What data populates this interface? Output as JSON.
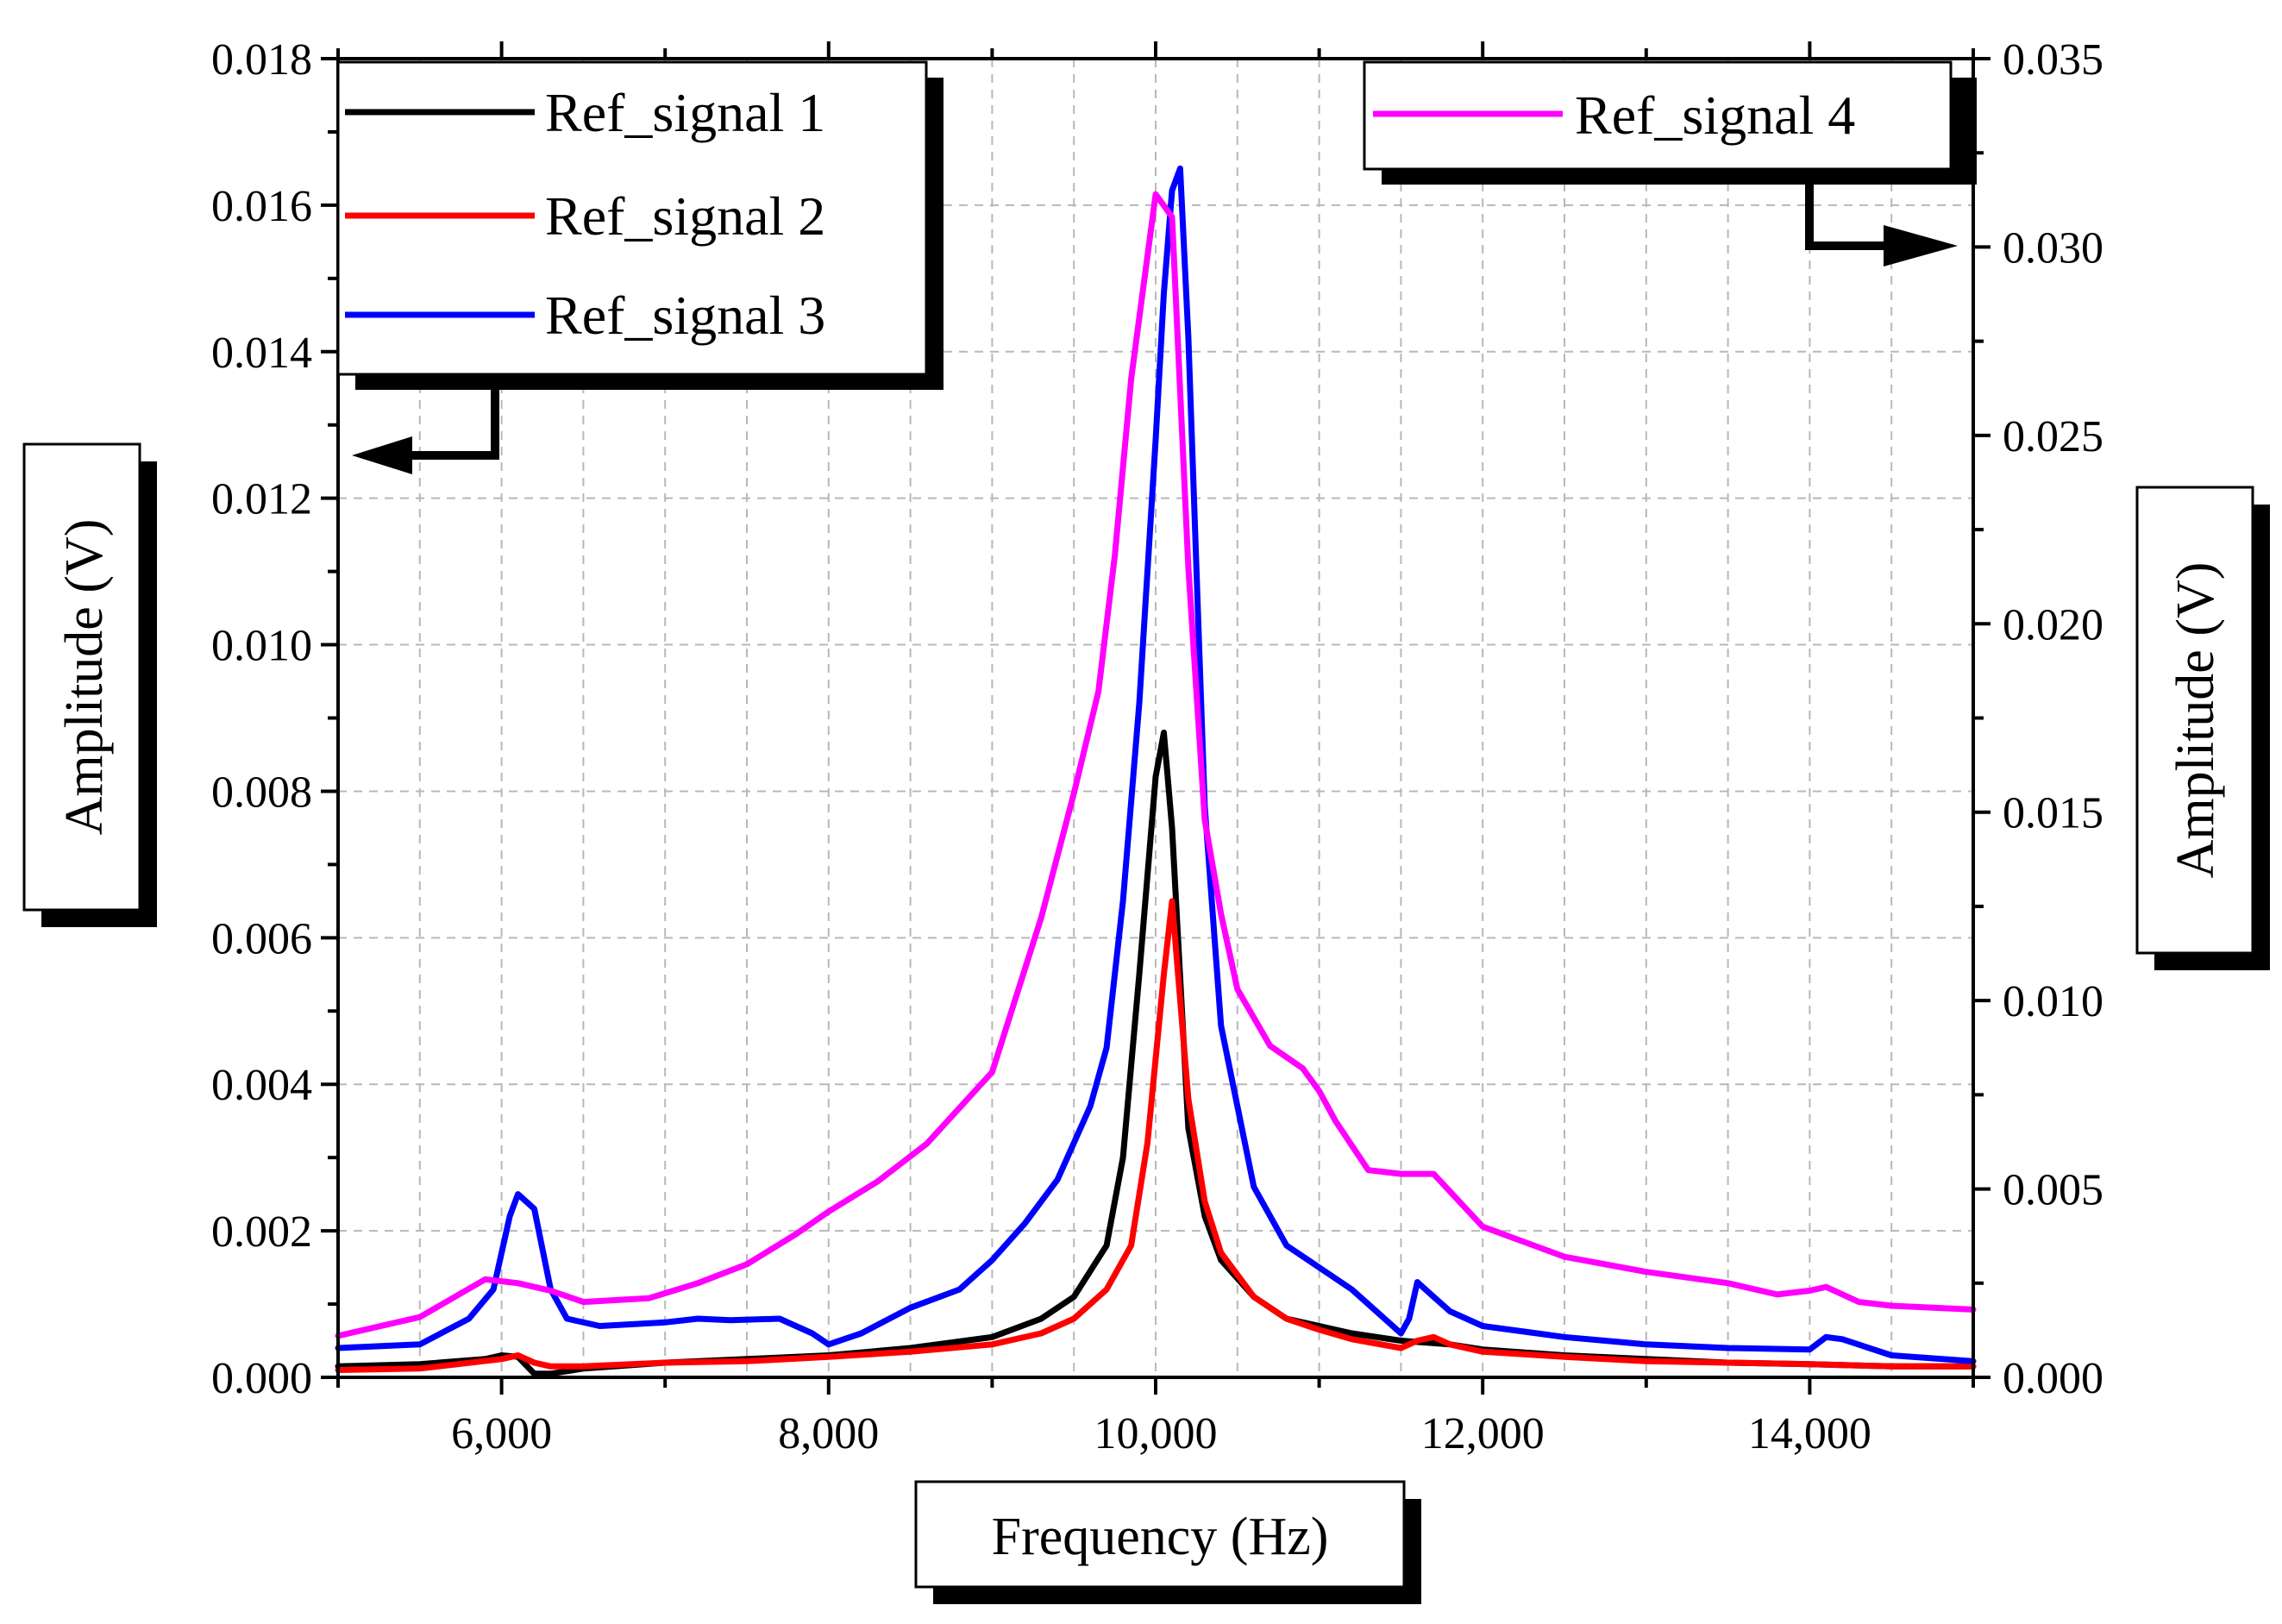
{
  "chart_data": {
    "type": "line",
    "xlabel": "Frequency (Hz)",
    "ylabel_left": "Amplitude (V)",
    "ylabel_right": "Amplitude (V)",
    "xlim": [
      5000,
      15000
    ],
    "ylim_left": [
      0,
      0.018
    ],
    "ylim_right": [
      0,
      0.035
    ],
    "x_ticks": [
      6000,
      8000,
      10000,
      12000,
      14000
    ],
    "x_tick_labels": [
      "6,000",
      "8,000",
      "10,000",
      "12,000",
      "14,000"
    ],
    "y_left_ticks": [
      0,
      0.002,
      0.004,
      0.006,
      0.008,
      0.01,
      0.012,
      0.014,
      0.016,
      0.018
    ],
    "y_left_tick_labels": [
      "0.000",
      "0.002",
      "0.004",
      "0.006",
      "0.008",
      "0.010",
      "0.012",
      "0.014",
      "0.016",
      "0.018"
    ],
    "y_right_ticks": [
      0,
      0.005,
      0.01,
      0.015,
      0.02,
      0.025,
      0.03,
      0.035
    ],
    "y_right_tick_labels": [
      "0.000",
      "0.005",
      "0.010",
      "0.015",
      "0.020",
      "0.025",
      "0.030",
      "0.035"
    ],
    "grid": true,
    "legend_left_position": "top-left",
    "legend_right_position": "top-right",
    "series": [
      {
        "name": "Ref_signal 1",
        "axis": "left",
        "color": "#000000",
        "x": [
          5000,
          5500,
          5900,
          6000,
          6100,
          6200,
          6300,
          6500,
          7000,
          7500,
          8000,
          8500,
          9000,
          9300,
          9500,
          9700,
          9800,
          9900,
          10000,
          10050,
          10100,
          10200,
          10300,
          10400,
          10600,
          10800,
          11000,
          11200,
          11500,
          11800,
          12000,
          12500,
          13000,
          13500,
          14000,
          14500,
          15000
        ],
        "y": [
          0.00015,
          0.00018,
          0.00025,
          0.0003,
          0.00028,
          5e-05,
          5e-05,
          0.00012,
          0.0002,
          0.00025,
          0.0003,
          0.0004,
          0.00055,
          0.0008,
          0.0011,
          0.0018,
          0.003,
          0.0055,
          0.0082,
          0.0088,
          0.0075,
          0.0034,
          0.0022,
          0.0016,
          0.0011,
          0.0008,
          0.0007,
          0.0006,
          0.0005,
          0.00045,
          0.00038,
          0.0003,
          0.00025,
          0.0002,
          0.00018,
          0.00015,
          0.00015
        ]
      },
      {
        "name": "Ref_signal 2",
        "axis": "left",
        "color": "#ff0000",
        "x": [
          5000,
          5500,
          6000,
          6100,
          6200,
          6300,
          6500,
          7000,
          7500,
          8000,
          8500,
          9000,
          9300,
          9500,
          9700,
          9850,
          9950,
          10050,
          10100,
          10200,
          10300,
          10400,
          10600,
          10800,
          11000,
          11200,
          11500,
          11600,
          11700,
          11800,
          12000,
          12500,
          13000,
          13500,
          14000,
          14500,
          15000
        ],
        "y": [
          0.0001,
          0.00012,
          0.00025,
          0.0003,
          0.0002,
          0.00015,
          0.00015,
          0.0002,
          0.00022,
          0.00028,
          0.00035,
          0.00045,
          0.0006,
          0.0008,
          0.0012,
          0.0018,
          0.0032,
          0.0055,
          0.0065,
          0.0038,
          0.0024,
          0.0017,
          0.0011,
          0.0008,
          0.00065,
          0.00052,
          0.0004,
          0.0005,
          0.00055,
          0.00045,
          0.00035,
          0.00028,
          0.00022,
          0.0002,
          0.00018,
          0.00015,
          0.00015
        ]
      },
      {
        "name": "Ref_signal 3",
        "axis": "left",
        "color": "#0000ff",
        "x": [
          5000,
          5500,
          5800,
          5950,
          6050,
          6100,
          6200,
          6300,
          6400,
          6600,
          7000,
          7200,
          7400,
          7700,
          7900,
          8000,
          8200,
          8500,
          8800,
          9000,
          9200,
          9400,
          9600,
          9700,
          9800,
          9900,
          10000,
          10050,
          10100,
          10150,
          10200,
          10300,
          10400,
          10600,
          10800,
          11000,
          11200,
          11500,
          11550,
          11600,
          11700,
          11800,
          12000,
          12500,
          13000,
          13500,
          14000,
          14100,
          14200,
          14500,
          15000
        ],
        "y": [
          0.0004,
          0.00045,
          0.0008,
          0.0012,
          0.0022,
          0.0025,
          0.0023,
          0.0012,
          0.0008,
          0.0007,
          0.00075,
          0.0008,
          0.00078,
          0.0008,
          0.0006,
          0.00045,
          0.0006,
          0.00095,
          0.0012,
          0.0016,
          0.0021,
          0.0027,
          0.0037,
          0.0045,
          0.0065,
          0.0092,
          0.0128,
          0.0148,
          0.0162,
          0.0165,
          0.0142,
          0.0078,
          0.0048,
          0.0026,
          0.0018,
          0.0015,
          0.0012,
          0.0006,
          0.0008,
          0.0013,
          0.0011,
          0.0009,
          0.0007,
          0.00055,
          0.00045,
          0.0004,
          0.00038,
          0.00055,
          0.00052,
          0.0003,
          0.00022
        ]
      },
      {
        "name": "Ref_signal 4",
        "axis": "right",
        "color": "#ff00ff",
        "x": [
          5000,
          5500,
          5900,
          6100,
          6300,
          6500,
          6900,
          7200,
          7500,
          7800,
          8000,
          8300,
          8600,
          9000,
          9300,
          9500,
          9650,
          9750,
          9850,
          10000,
          10100,
          10200,
          10300,
          10400,
          10500,
          10700,
          10900,
          11000,
          11100,
          11300,
          11500,
          11700,
          12000,
          12500,
          13000,
          13500,
          13800,
          14000,
          14100,
          14300,
          14500,
          15000
        ],
        "y": [
          0.0011,
          0.0016,
          0.0026,
          0.0025,
          0.0023,
          0.002,
          0.0021,
          0.0025,
          0.003,
          0.0038,
          0.0044,
          0.0052,
          0.0062,
          0.0081,
          0.0122,
          0.0155,
          0.0182,
          0.0218,
          0.0265,
          0.0314,
          0.0308,
          0.0215,
          0.0148,
          0.0123,
          0.0103,
          0.0088,
          0.0082,
          0.0076,
          0.0068,
          0.0055,
          0.0054,
          0.0054,
          0.004,
          0.0032,
          0.0028,
          0.0025,
          0.0022,
          0.0023,
          0.0024,
          0.002,
          0.0019,
          0.0018
        ]
      }
    ]
  }
}
